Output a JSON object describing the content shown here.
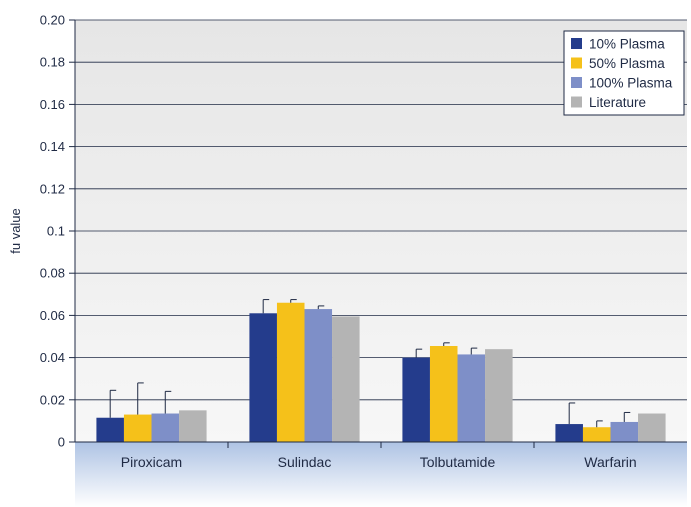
{
  "chart_data": {
    "type": "bar",
    "title": "",
    "xlabel": "",
    "ylabel": "fu value",
    "ylim": [
      0,
      0.2
    ],
    "yticks": [
      "0",
      "0.02",
      "0.04",
      "0.06",
      "0.08",
      "0.1",
      "0.12",
      "0.14",
      "0.16",
      "0.18",
      "0.20"
    ],
    "grid": true,
    "legend_position": "top-right",
    "categories": [
      "Piroxicam",
      "Sulindac",
      "Tolbutamide",
      "Warfarin"
    ],
    "series": [
      {
        "name": "10% Plasma",
        "color": "#243c8c",
        "values": [
          0.0115,
          0.061,
          0.04,
          0.0085
        ],
        "error_upper": [
          0.0245,
          0.0675,
          0.044,
          0.0185
        ]
      },
      {
        "name": "50% Plasma",
        "color": "#f5c11a",
        "values": [
          0.013,
          0.066,
          0.0455,
          0.007
        ],
        "error_upper": [
          0.028,
          0.0675,
          0.047,
          0.01
        ]
      },
      {
        "name": "100% Plasma",
        "color": "#7e8fc8",
        "values": [
          0.0135,
          0.063,
          0.0415,
          0.0095
        ],
        "error_upper": [
          0.024,
          0.0645,
          0.0445,
          0.014
        ]
      },
      {
        "name": "Literature",
        "color": "#b4b4b4",
        "values": [
          0.015,
          0.0595,
          0.044,
          0.0135
        ],
        "error_upper": [
          null,
          null,
          null,
          null
        ]
      }
    ]
  }
}
